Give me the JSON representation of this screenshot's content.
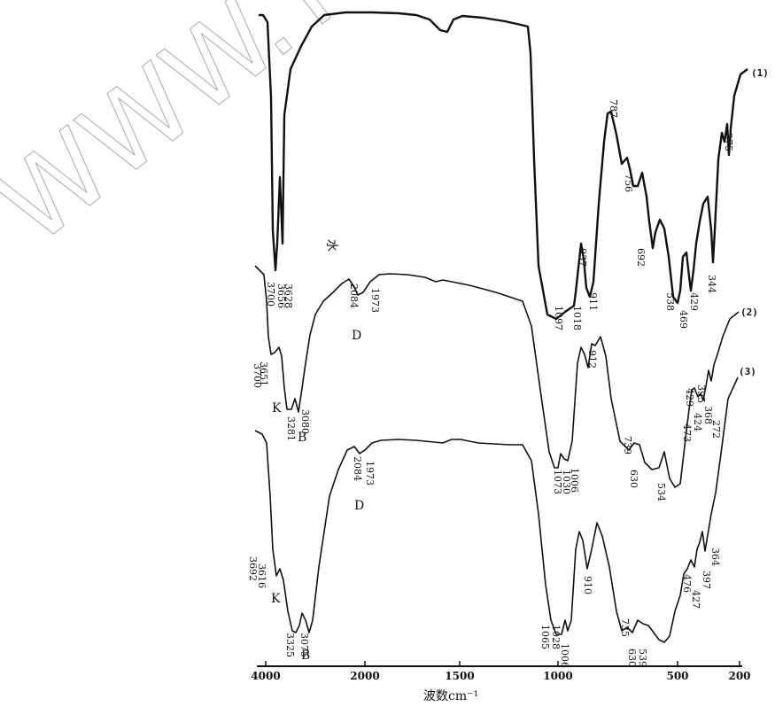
{
  "watermark": "WWW.YSKW.",
  "chart_data": {
    "type": "line",
    "xlabel": "波数cm⁻¹",
    "x_axis_tick_labels": [
      "4000",
      "2000",
      "1500",
      "1000",
      "500",
      "200"
    ],
    "x_range": [
      4000,
      200
    ],
    "y_axis": "none",
    "grid": false,
    "series": [
      {
        "name": "(1)",
        "label_peaks": [
          "3700",
          "3656",
          "3628",
          "1097",
          "1018",
          "937",
          "911",
          "787",
          "756",
          "692",
          "538",
          "469",
          "429",
          "344",
          "275"
        ]
      },
      {
        "name": "(2)",
        "label_peaks": [
          "3700",
          "3651",
          "3281",
          "3080",
          "2084",
          "1973",
          "1073",
          "1030",
          "1006",
          "912",
          "739",
          "630",
          "534",
          "473",
          "424",
          "429",
          "395",
          "368",
          "272"
        ]
      },
      {
        "name": "(3)",
        "label_peaks": [
          "3692",
          "3616",
          "3325",
          "3075",
          "2084",
          "1973",
          "1065",
          "1028",
          "1006",
          "910",
          "735",
          "630",
          "539",
          "476",
          "427",
          "397",
          "364"
        ]
      }
    ],
    "annotations": [
      "水",
      "K",
      "B",
      "D",
      "K",
      "B",
      "D"
    ]
  }
}
